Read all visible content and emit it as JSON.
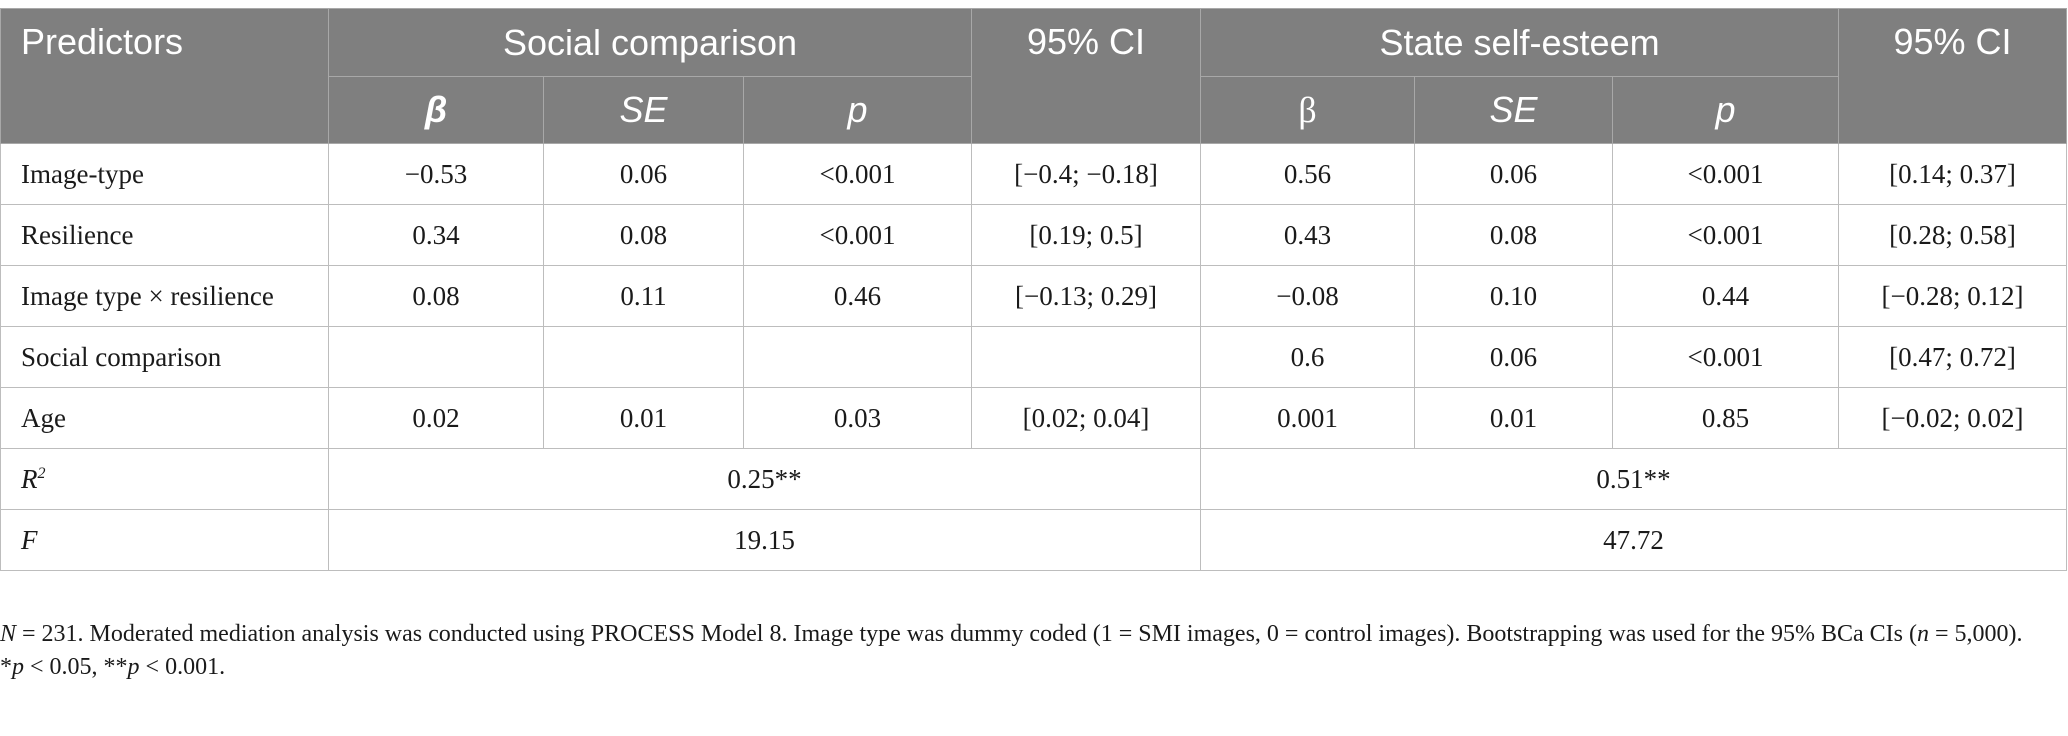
{
  "table": {
    "headers": {
      "predictors": "Predictors",
      "social_comparison": "Social comparison",
      "ci_1": "95% CI",
      "state_self_esteem": "State self-esteem",
      "ci_2": "95% CI",
      "sub": {
        "beta_1": "β",
        "se_1": "SE",
        "p_1": "p",
        "beta_2": "β",
        "se_2": "SE",
        "p_2": "p"
      }
    },
    "rows": [
      {
        "label": "Image-type",
        "sc_beta": "−0.53",
        "sc_se": "0.06",
        "sc_p": "<0.001",
        "sc_ci": "[−0.4; −0.18]",
        "se_beta": "0.56",
        "se_se": "0.06",
        "se_p": "<0.001",
        "se_ci": "[0.14; 0.37]"
      },
      {
        "label": "Resilience",
        "sc_beta": "0.34",
        "sc_se": "0.08",
        "sc_p": "<0.001",
        "sc_ci": "[0.19; 0.5]",
        "se_beta": "0.43",
        "se_se": "0.08",
        "se_p": "<0.001",
        "se_ci": "[0.28; 0.58]"
      },
      {
        "label": "Image type × resilience",
        "sc_beta": "0.08",
        "sc_se": "0.11",
        "sc_p": "0.46",
        "sc_ci": "[−0.13; 0.29]",
        "se_beta": "−0.08",
        "se_se": "0.10",
        "se_p": "0.44",
        "se_ci": "[−0.28; 0.12]"
      },
      {
        "label": "Social comparison",
        "sc_beta": "",
        "sc_se": "",
        "sc_p": "",
        "sc_ci": "",
        "se_beta": "0.6",
        "se_se": "0.06",
        "se_p": "<0.001",
        "se_ci": "[0.47; 0.72]"
      },
      {
        "label": "Age",
        "sc_beta": "0.02",
        "sc_se": "0.01",
        "sc_p": "0.03",
        "sc_ci": "[0.02; 0.04]",
        "se_beta": "0.001",
        "se_se": "0.01",
        "se_p": "0.85",
        "se_ci": "[−0.02; 0.02]"
      }
    ],
    "r2": {
      "label_main": "R",
      "label_sup": "2",
      "sc": "0.25**",
      "se": "0.51**"
    },
    "f": {
      "label": "F",
      "sc": "19.15",
      "se": "47.72"
    }
  },
  "footnote": {
    "n_symbol": "N",
    "line1_rest": " = 231. Moderated mediation analysis was conducted using PROCESS Model 8. Image type was dummy coded (1 = SMI images, 0 = control images). Bootstrapping was used for the 95% BCa CIs (",
    "n_small": "n",
    "line1_end": " = 5,000).",
    "p_symbol_1": "p",
    "sig1": "*",
    "sig1_rest": " < 0.05, **",
    "p_symbol_2": "p",
    "sig2_rest": " < 0.001."
  }
}
